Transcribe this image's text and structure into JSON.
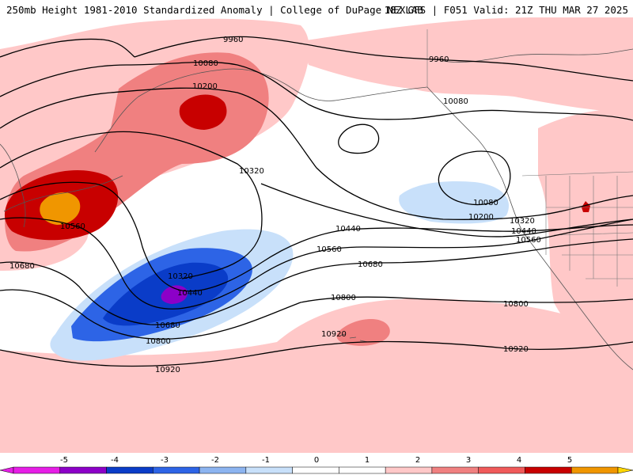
{
  "header": {
    "title_left": "250mb Height 1981-2010 Standardized Anomaly | College of DuPage NEXLAB",
    "title_right": "18Z GFS | F051 Valid: 21Z THU MAR 27 2025"
  },
  "colorbar": {
    "ticks": [
      "-5",
      "-4",
      "-3",
      "-2",
      "-1",
      "0",
      "1",
      "2",
      "3",
      "4",
      "5"
    ],
    "colors": [
      "#e61ee6",
      "#8c00c8",
      "#0a3cc8",
      "#2d64e6",
      "#8cb4f0",
      "#c8e0fa",
      "#ffffff",
      "#ffffff",
      "#ffc8c8",
      "#f08080",
      "#f05a5a",
      "#c80000",
      "#f09600",
      "#ffd700"
    ]
  },
  "contours": {
    "labels": [
      {
        "text": "9960"
      },
      {
        "text": "9960"
      },
      {
        "text": "10080"
      },
      {
        "text": "10080"
      },
      {
        "text": "10080"
      },
      {
        "text": "10200"
      },
      {
        "text": "10200"
      },
      {
        "text": "10320"
      },
      {
        "text": "10320"
      },
      {
        "text": "10320"
      },
      {
        "text": "10440"
      },
      {
        "text": "10440"
      },
      {
        "text": "10440"
      },
      {
        "text": "10560"
      },
      {
        "text": "10560"
      },
      {
        "text": "10560"
      },
      {
        "text": "10680"
      },
      {
        "text": "10680"
      },
      {
        "text": "10680"
      },
      {
        "text": "10800"
      },
      {
        "text": "10800"
      },
      {
        "text": "10800"
      },
      {
        "text": "10920"
      },
      {
        "text": "10920"
      },
      {
        "text": "10920"
      }
    ]
  }
}
